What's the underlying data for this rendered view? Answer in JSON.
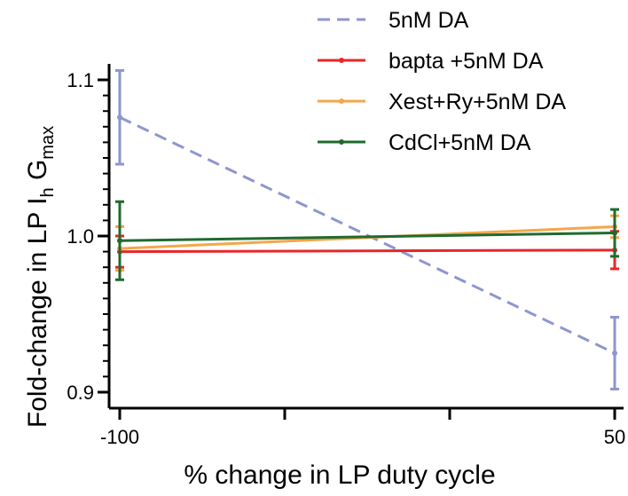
{
  "chart_data": {
    "type": "line",
    "title": "",
    "xlabel": "% change in LP duty cycle",
    "ylabel": {
      "main": "Fold-change in LP I",
      "sub1": "h",
      "mid": " G",
      "sub2": "max"
    },
    "x": [
      -100,
      50
    ],
    "x_tick_labels": [
      "-100",
      "",
      "",
      "50"
    ],
    "y_ticks": [
      0.9,
      1.0,
      1.1
    ],
    "y_tick_labels": [
      "0.9",
      "1.0",
      "1.1"
    ],
    "ylim": [
      0.9,
      1.1
    ],
    "grid": false,
    "legend_position": "top-right",
    "series": [
      {
        "name": "5nM DA",
        "color": "#8e96cf",
        "dash": true,
        "values": [
          1.076,
          0.925
        ],
        "errors": [
          0.03,
          0.023
        ]
      },
      {
        "name": "bapta +5nM DA",
        "color": "#e8262a",
        "dash": false,
        "values": [
          0.99,
          0.991
        ],
        "errors": [
          0.01,
          0.012
        ]
      },
      {
        "name": "Xest+Ry+5nM DA",
        "color": "#f5a64a",
        "dash": false,
        "values": [
          0.992,
          1.006
        ],
        "errors": [
          0.014,
          0.007
        ]
      },
      {
        "name": "CdCl+5nM DA",
        "color": "#1f6b2e",
        "dash": false,
        "values": [
          0.997,
          1.002
        ],
        "errors": [
          0.025,
          0.015
        ]
      }
    ]
  }
}
